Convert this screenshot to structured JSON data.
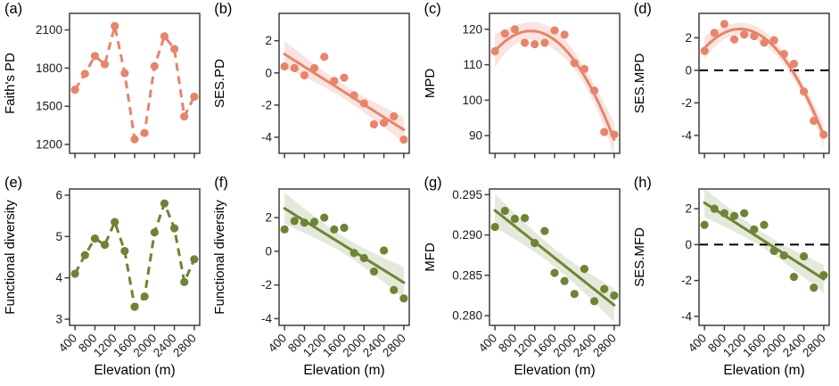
{
  "colors": {
    "salmon": "#E5856C",
    "salmon_band": "rgba(229,133,108,0.22)",
    "green": "#6D8435",
    "green_band": "rgba(109,132,53,0.18)",
    "axis": "#3F3F3F",
    "text": "#1A1A1A",
    "zero": "#000000"
  },
  "chart_data": [
    {
      "panel": "(a)",
      "type": "line",
      "connect": "dashed",
      "fit": "none",
      "zero_line": false,
      "ylabel": "Faith's PD",
      "xlabel": "",
      "show_x_labels": false,
      "color_key": "salmon",
      "xlim": [
        290,
        2910
      ],
      "xticks": [
        400,
        800,
        1200,
        1600,
        2000,
        2400,
        2800
      ],
      "ylim": [
        1130,
        2230
      ],
      "yticks": [
        1200,
        1500,
        1800,
        2100
      ],
      "ytick_labels": [
        "1200",
        "1500",
        "1800",
        "2100"
      ],
      "x": [
        400,
        600,
        800,
        1000,
        1200,
        1400,
        1600,
        1800,
        2000,
        2200,
        2400,
        2600,
        2800
      ],
      "y": [
        1630,
        1755,
        1895,
        1830,
        2130,
        1760,
        1240,
        1290,
        1815,
        2050,
        1950,
        1420,
        1575
      ]
    },
    {
      "panel": "(b)",
      "type": "scatter",
      "connect": "none",
      "fit": "linear",
      "zero_line": false,
      "ylabel": "SES.PD",
      "xlabel": "",
      "show_x_labels": false,
      "color_key": "salmon",
      "xlim": [
        290,
        2910
      ],
      "xticks": [
        400,
        800,
        1200,
        1600,
        2000,
        2400,
        2800
      ],
      "ylim": [
        -5.0,
        3.7
      ],
      "yticks": [
        2,
        0,
        -2,
        -4
      ],
      "ytick_labels": [
        "2",
        "0",
        "-2",
        "-4"
      ],
      "x": [
        400,
        600,
        800,
        1000,
        1200,
        1400,
        1600,
        1800,
        2000,
        2200,
        2400,
        2600,
        2800
      ],
      "y": [
        0.4,
        0.3,
        -0.15,
        0.3,
        1.0,
        -0.5,
        -0.3,
        -1.4,
        -1.9,
        -3.2,
        -3.1,
        -2.7,
        -4.15
      ]
    },
    {
      "panel": "(c)",
      "type": "scatter",
      "connect": "none",
      "fit": "quadratic",
      "zero_line": false,
      "ylabel": "MPD",
      "xlabel": "",
      "show_x_labels": false,
      "color_key": "salmon",
      "xlim": [
        290,
        2910
      ],
      "xticks": [
        400,
        800,
        1200,
        1600,
        2000,
        2400,
        2800
      ],
      "ylim": [
        85,
        124.5
      ],
      "yticks": [
        90,
        100,
        110,
        120
      ],
      "ytick_labels": [
        "90",
        "100",
        "110",
        "120"
      ],
      "x": [
        400,
        600,
        800,
        1000,
        1200,
        1400,
        1600,
        1800,
        2000,
        2200,
        2400,
        2600,
        2800
      ],
      "y": [
        113.8,
        118.8,
        120.0,
        116.2,
        115.8,
        116.2,
        119.7,
        118.5,
        110.5,
        108.8,
        102.7,
        91.0,
        90.3
      ]
    },
    {
      "panel": "(d)",
      "type": "scatter",
      "connect": "none",
      "fit": "quadratic",
      "zero_line": true,
      "ylabel": "SES.MPD",
      "xlabel": "",
      "show_x_labels": false,
      "color_key": "salmon",
      "xlim": [
        290,
        2910
      ],
      "xticks": [
        400,
        800,
        1200,
        1600,
        2000,
        2400,
        2800
      ],
      "ylim": [
        -5.1,
        3.5
      ],
      "yticks": [
        2,
        0,
        -2,
        -4
      ],
      "ytick_labels": [
        "2",
        "0",
        "-2",
        "-4"
      ],
      "x": [
        400,
        600,
        800,
        1000,
        1200,
        1400,
        1600,
        1800,
        2000,
        2200,
        2400,
        2600,
        2800
      ],
      "y": [
        1.2,
        2.3,
        2.85,
        1.9,
        2.2,
        2.1,
        1.7,
        1.85,
        1.0,
        0.4,
        -1.3,
        -3.1,
        -3.95
      ]
    },
    {
      "panel": "(e)",
      "type": "line",
      "connect": "dashed",
      "fit": "none",
      "zero_line": false,
      "ylabel": "Functional diversity",
      "xlabel": "Elevation (m)",
      "show_x_labels": true,
      "color_key": "green",
      "xlim": [
        290,
        2910
      ],
      "xticks": [
        400,
        800,
        1200,
        1600,
        2000,
        2400,
        2800
      ],
      "ylim": [
        2.85,
        6.15
      ],
      "yticks": [
        3,
        4,
        5,
        6
      ],
      "ytick_labels": [
        "3",
        "4",
        "5",
        "6"
      ],
      "x": [
        400,
        600,
        800,
        1000,
        1200,
        1400,
        1600,
        1800,
        2000,
        2200,
        2400,
        2600,
        2800
      ],
      "y": [
        4.1,
        4.55,
        4.95,
        4.8,
        5.35,
        4.65,
        3.3,
        3.55,
        5.1,
        5.8,
        5.2,
        3.9,
        4.45
      ]
    },
    {
      "panel": "(f)",
      "type": "scatter",
      "connect": "none",
      "fit": "linear",
      "zero_line": false,
      "ylabel": "Functional diversity",
      "xlabel": "Elevation (m)",
      "show_x_labels": true,
      "color_key": "green",
      "xlim": [
        290,
        2910
      ],
      "xticks": [
        400,
        800,
        1200,
        1600,
        2000,
        2400,
        2800
      ],
      "ylim": [
        -4.4,
        3.7
      ],
      "yticks": [
        2,
        0,
        -2,
        -4
      ],
      "ytick_labels": [
        "2",
        "0",
        "-2",
        "-4"
      ],
      "x": [
        400,
        600,
        800,
        1000,
        1200,
        1400,
        1600,
        1800,
        2000,
        2200,
        2400,
        2600,
        2800
      ],
      "y": [
        1.3,
        1.8,
        1.7,
        1.75,
        2.0,
        1.3,
        1.4,
        -0.1,
        -0.4,
        -1.2,
        0.05,
        -2.3,
        -2.8
      ]
    },
    {
      "panel": "(g)",
      "type": "scatter",
      "connect": "none",
      "fit": "linear",
      "zero_line": false,
      "ylabel": "MFD",
      "xlabel": "Elevation (m)",
      "show_x_labels": true,
      "color_key": "green",
      "xlim": [
        290,
        2910
      ],
      "xticks": [
        400,
        800,
        1200,
        1600,
        2000,
        2400,
        2800
      ],
      "ylim": [
        0.2788,
        0.2957
      ],
      "yticks": [
        0.28,
        0.285,
        0.29,
        0.295
      ],
      "ytick_labels": [
        "0.280",
        "0.285",
        "0.290",
        "0.295"
      ],
      "x": [
        400,
        600,
        800,
        1000,
        1200,
        1400,
        1600,
        1800,
        2000,
        2200,
        2400,
        2600,
        2800
      ],
      "y": [
        0.291,
        0.293,
        0.292,
        0.2921,
        0.289,
        0.2905,
        0.2853,
        0.2843,
        0.2827,
        0.2858,
        0.2818,
        0.2833,
        0.2825
      ]
    },
    {
      "panel": "(h)",
      "type": "scatter",
      "connect": "none",
      "fit": "linear",
      "zero_line": true,
      "ylabel": "SES.MFD",
      "xlabel": "Elevation (m)",
      "show_x_labels": true,
      "color_key": "green",
      "xlim": [
        290,
        2910
      ],
      "xticks": [
        400,
        800,
        1200,
        1600,
        2000,
        2400,
        2800
      ],
      "ylim": [
        -4.5,
        3.1
      ],
      "yticks": [
        2,
        0,
        -2,
        -4
      ],
      "ytick_labels": [
        "2",
        "0",
        "-2",
        "-4"
      ],
      "x": [
        400,
        600,
        800,
        1000,
        1200,
        1400,
        1600,
        1800,
        2000,
        2200,
        2400,
        2600,
        2800
      ],
      "y": [
        1.1,
        2.0,
        1.75,
        1.6,
        1.75,
        0.85,
        1.1,
        -0.35,
        -0.6,
        -1.8,
        -0.65,
        -2.4,
        -1.7
      ]
    }
  ]
}
